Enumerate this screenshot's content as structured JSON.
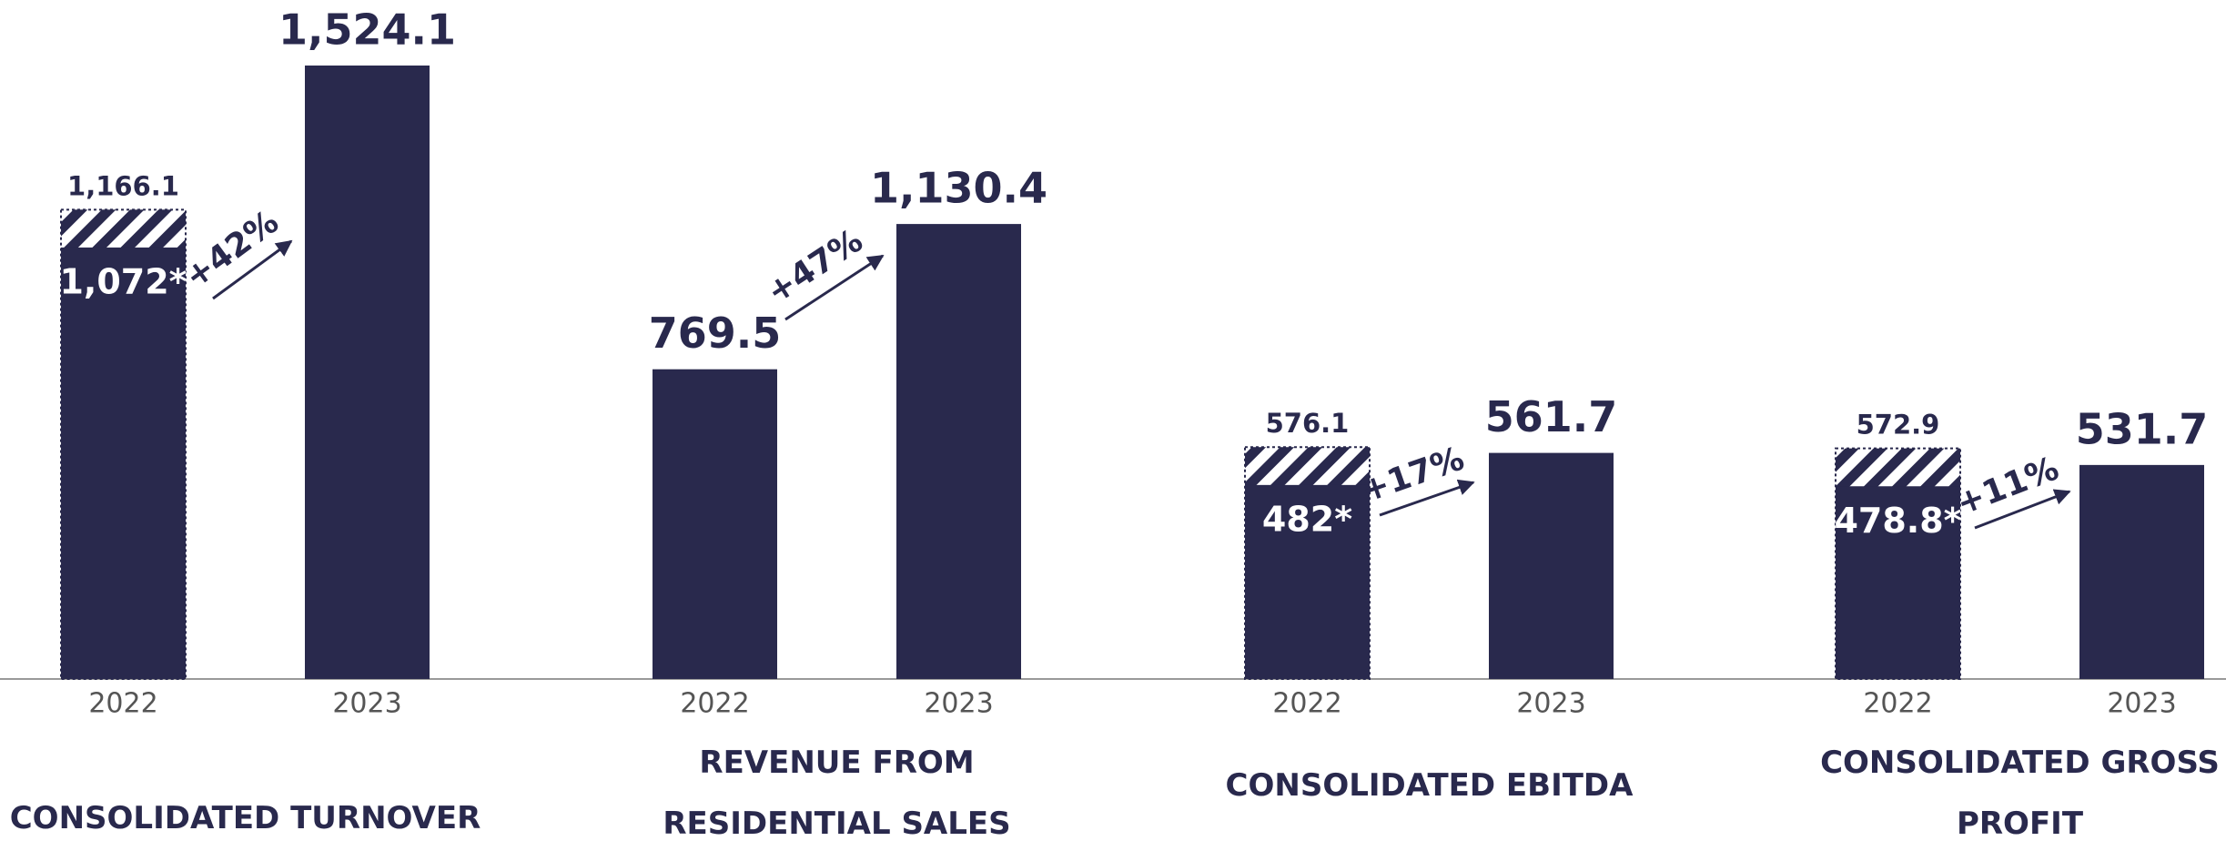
{
  "chart_data": [
    {
      "type": "bar",
      "title": "CONSOLIDATED TURNOVER",
      "categories": [
        "2022",
        "2023"
      ],
      "series": [
        {
          "color": "#29294d",
          "pattern": "hatch",
          "values": [
            1166.1,
            null
          ],
          "value_labels": [
            "1,166.1",
            null
          ]
        },
        {
          "color": "#29294d",
          "values": [
            1072,
            1524.1
          ],
          "value_labels": [
            "1,072*",
            "1,524.1"
          ]
        }
      ],
      "annotation": "+42%"
    },
    {
      "type": "bar",
      "title": "REVENUE FROM RESIDENTIAL SALES",
      "categories": [
        "2022",
        "2023"
      ],
      "series": [
        {
          "color": "#29294d",
          "values": [
            769.5,
            1130.4
          ],
          "value_labels": [
            "769.5",
            "1,130.4"
          ]
        }
      ],
      "annotation": "+47%"
    },
    {
      "type": "bar",
      "title": "CONSOLIDATED EBITDA",
      "categories": [
        "2022",
        "2023"
      ],
      "series": [
        {
          "color": "#29294d",
          "pattern": "hatch",
          "values": [
            576.1,
            null
          ],
          "value_labels": [
            "576.1",
            null
          ]
        },
        {
          "color": "#29294d",
          "values": [
            482,
            561.7
          ],
          "value_labels": [
            "482*",
            "561.7"
          ]
        }
      ],
      "annotation": "+17%"
    },
    {
      "type": "bar",
      "title": "CONSOLIDATED GROSS PROFIT",
      "categories": [
        "2022",
        "2023"
      ],
      "series": [
        {
          "color": "#29294d",
          "pattern": "hatch",
          "values": [
            572.9,
            null
          ],
          "value_labels": [
            "572.9",
            null
          ]
        },
        {
          "color": "#29294d",
          "values": [
            478.8,
            531.7
          ],
          "value_labels": [
            "478.8*",
            "531.7"
          ]
        }
      ],
      "annotation": "+11%"
    }
  ]
}
